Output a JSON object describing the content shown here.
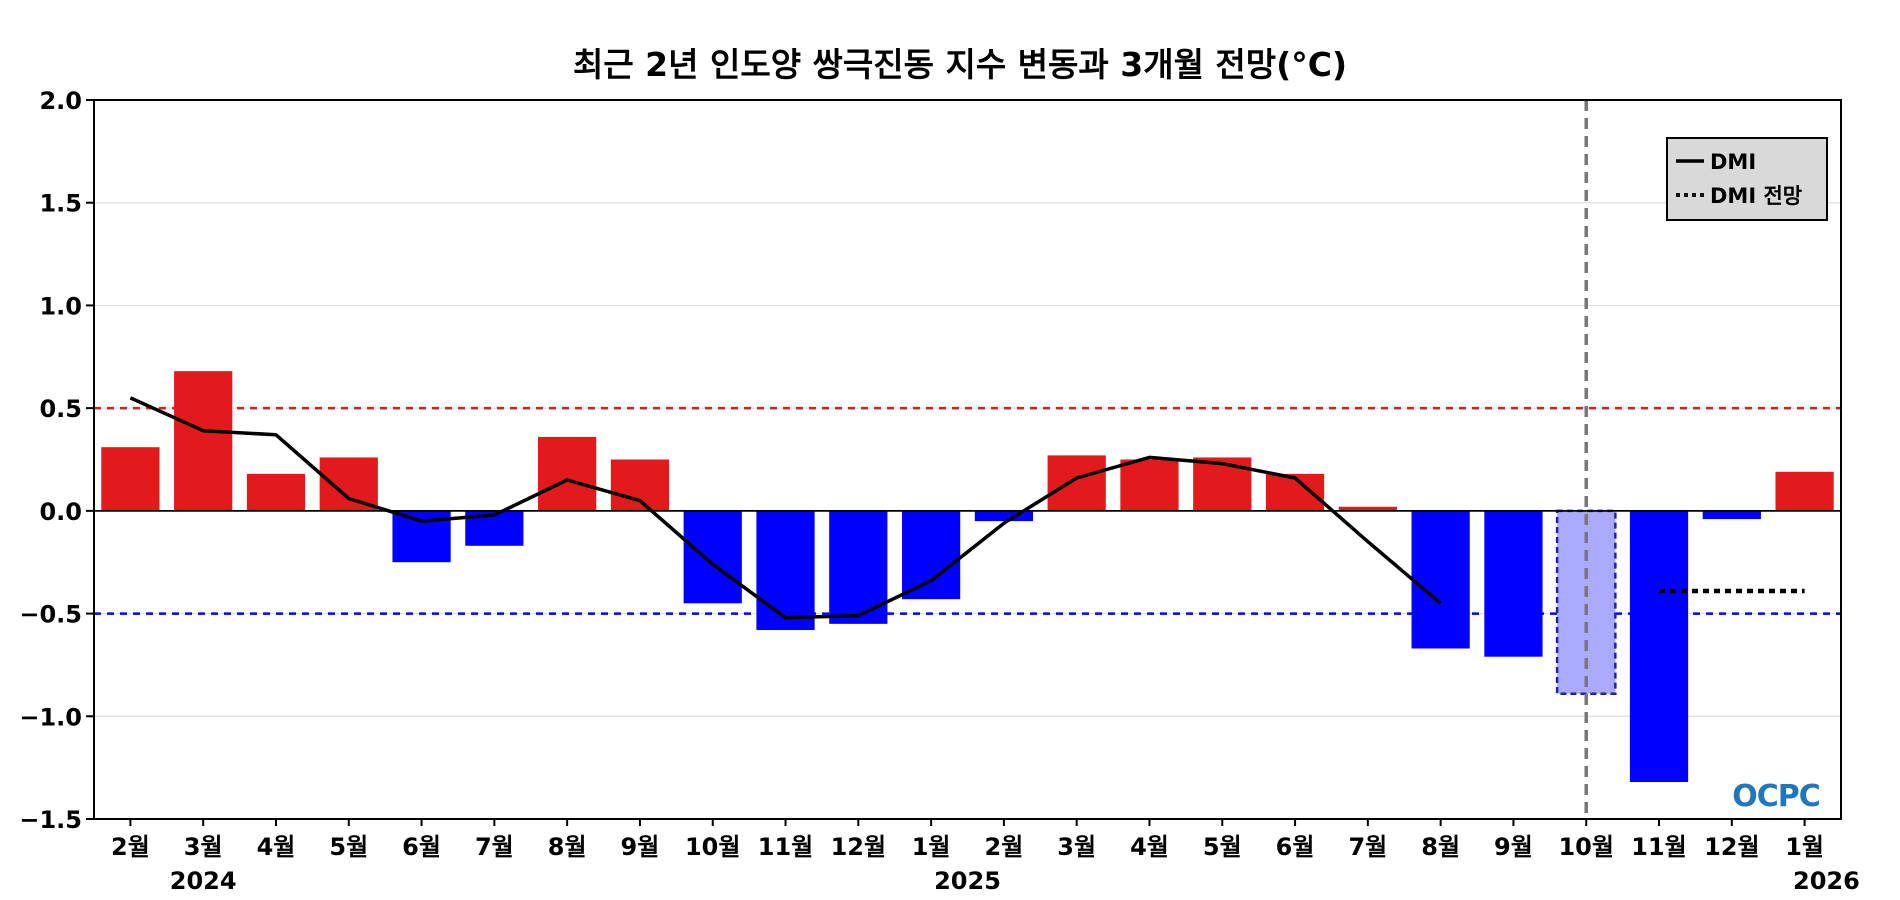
{
  "chart_data": {
    "type": "bar",
    "title": "최근 2년 인도양 쌍극진동 지수 변동과 3개월 전망(°C)",
    "xlabel": "",
    "ylabel": "",
    "ylim": [
      -1.5,
      2.0
    ],
    "yticks": [
      "2.0",
      "1.5",
      "1.0",
      "0.5",
      "0.0",
      "−0.5",
      "−1.0",
      "−1.5"
    ],
    "categories": [
      "2월",
      "3월",
      "4월",
      "5월",
      "6월",
      "7월",
      "8월",
      "9월",
      "10월",
      "11월",
      "12월",
      "1월",
      "2월",
      "3월",
      "4월",
      "5월",
      "6월",
      "7월",
      "8월",
      "9월",
      "10월",
      "11월",
      "12월",
      "1월"
    ],
    "years": [
      {
        "label": "2024",
        "index": 1
      },
      {
        "label": "2025",
        "index": 11.5
      },
      {
        "label": "2026",
        "index": 23.3
      }
    ],
    "values": [
      0.31,
      0.68,
      0.18,
      0.26,
      -0.25,
      -0.17,
      0.36,
      0.25,
      -0.45,
      -0.58,
      -0.55,
      -0.43,
      -0.05,
      0.27,
      0.25,
      0.26,
      0.18,
      0.02,
      -0.67,
      -0.71,
      -0.89,
      -1.32,
      -0.04,
      0.19
    ],
    "forecast_index": 20,
    "series": [
      {
        "name": "DMI",
        "style": "solid",
        "x": [
          0,
          1,
          2,
          3,
          4,
          5,
          6,
          7,
          8,
          9,
          10,
          11,
          12,
          13,
          14,
          15,
          16,
          17,
          18
        ],
        "values": [
          0.55,
          0.39,
          0.37,
          0.06,
          -0.05,
          -0.02,
          0.15,
          0.05,
          -0.26,
          -0.52,
          -0.51,
          -0.34,
          -0.06,
          0.16,
          0.26,
          0.23,
          0.16,
          -0.15,
          -0.45
        ]
      },
      {
        "name": "DMI 전망",
        "style": "dotted",
        "x": [
          21,
          23
        ],
        "values": [
          -0.39,
          -0.39
        ]
      }
    ],
    "thresholds": [
      0.5,
      -0.5
    ],
    "current_month_index": 20,
    "legend_position": "top-right",
    "colors": {
      "positive": "#e31a1c",
      "negative": "#0000ff",
      "forecast_fill": "#aaaaff",
      "forecast_edge": "#1f1fb3",
      "threshold_positive": "#e31a1c",
      "threshold_negative": "#0000ff",
      "line": "#000000",
      "grid": "#dddddd",
      "vline": "#777777",
      "legend_bg": "#d9d9d9"
    },
    "logo": "OCPC"
  }
}
